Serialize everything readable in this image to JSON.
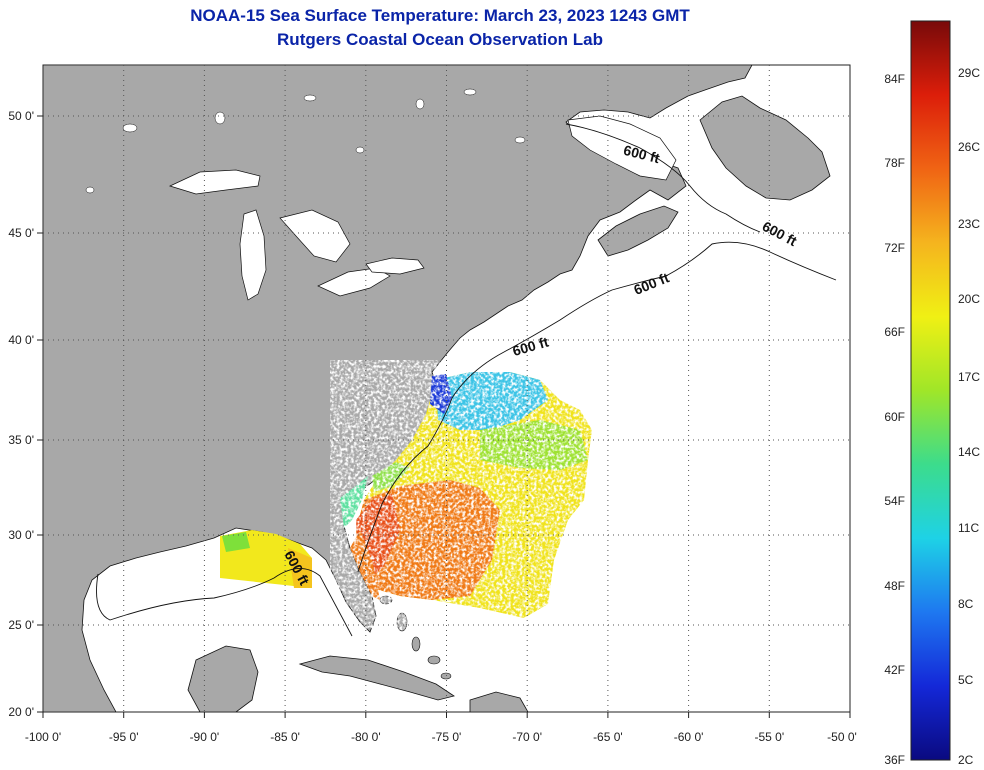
{
  "title": "NOAA-15 Sea Surface Temperature:  March 23, 2023 1243 GMT",
  "subtitle": "Rutgers Coastal Ocean Observation Lab",
  "map": {
    "lon_range": [
      -100,
      -50
    ],
    "lat_range": [
      20,
      52.5
    ],
    "x_ticks": [
      "-100 0'",
      "-95 0'",
      "-90 0'",
      "-85 0'",
      "-80 0'",
      "-75 0'",
      "-70 0'",
      "-65 0'",
      "-60 0'",
      "-55 0'",
      "-50 0'"
    ],
    "y_ticks": [
      "20 0'",
      "25 0'",
      "30 0'",
      "35 0'",
      "40 0'",
      "45 0'",
      "50 0'"
    ],
    "contour_labels": [
      "600 ft",
      "600 ft",
      "600 ft",
      "600 ft",
      "600 ft"
    ],
    "colors": {
      "land": "#a8a8a8",
      "ocean": "#ffffff",
      "grid": "#555555"
    }
  },
  "colorbar": {
    "fahrenheit": [
      "36F",
      "42F",
      "48F",
      "54F",
      "60F",
      "66F",
      "72F",
      "78F",
      "84F"
    ],
    "celsius": [
      "2C",
      "5C",
      "8C",
      "11C",
      "14C",
      "17C",
      "20C",
      "23C",
      "26C",
      "29C"
    ],
    "stops": [
      "#0a0a80",
      "#1428d8",
      "#1e78f0",
      "#1ed2e6",
      "#3cdc8c",
      "#a0e628",
      "#f0f014",
      "#f5b41e",
      "#f06414",
      "#dc1e0a",
      "#780a0a"
    ]
  }
}
